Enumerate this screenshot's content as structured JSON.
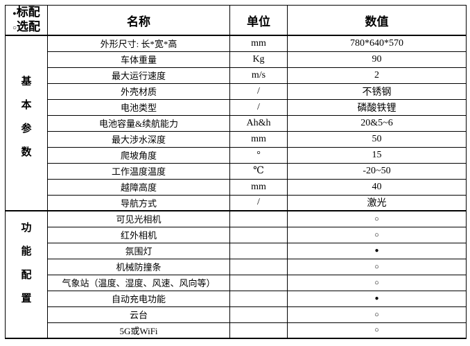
{
  "legend": {
    "items": [
      {
        "symbol": "●",
        "label": "标配"
      },
      {
        "symbol": "○",
        "label": "选配"
      }
    ]
  },
  "table": {
    "headers": {
      "name": "名称",
      "unit": "单位",
      "value": "数值"
    },
    "sections": [
      {
        "group": "基本参数",
        "rows": [
          {
            "name": "外形尺寸: 长*宽*高",
            "unit": "mm",
            "value": "780*640*570"
          },
          {
            "name": "车体重量",
            "unit": "Kg",
            "value": "90"
          },
          {
            "name": "最大运行速度",
            "unit": "m/s",
            "value": "2"
          },
          {
            "name": "外壳材质",
            "unit": "/",
            "value": "不锈钢"
          },
          {
            "name": "电池类型",
            "unit": "/",
            "value": "磷酸铁锂"
          },
          {
            "name": "电池容量&续航能力",
            "unit": "Ah&h",
            "value": "20&5~6"
          },
          {
            "name": "最大涉水深度",
            "unit": "mm",
            "value": "50"
          },
          {
            "name": "爬坡角度",
            "unit": "°",
            "value": "15"
          },
          {
            "name": "工作温度温度",
            "unit": "℃",
            "value": "-20~50"
          },
          {
            "name": "越障高度",
            "unit": "mm",
            "value": "40"
          },
          {
            "name": "导航方式",
            "unit": "/",
            "value": "激光"
          }
        ]
      },
      {
        "group": "功能配置",
        "rows": [
          {
            "name": "可见光相机",
            "unit": "",
            "value": "○"
          },
          {
            "name": "红外相机",
            "unit": "",
            "value": "○"
          },
          {
            "name": "氛围灯",
            "unit": "",
            "value": "●"
          },
          {
            "name": "机械防撞条",
            "unit": "",
            "value": "○"
          },
          {
            "name": "气象站（温度、湿度、风速、风向等）",
            "unit": "",
            "value": "○"
          },
          {
            "name": "自动充电功能",
            "unit": "",
            "value": "●"
          },
          {
            "name": "云台",
            "unit": "",
            "value": "○"
          },
          {
            "name": "5G或WiFi",
            "unit": "",
            "value": "○"
          }
        ]
      }
    ]
  },
  "colors": {
    "border": "#000000",
    "text": "#000000",
    "background": "#ffffff"
  }
}
